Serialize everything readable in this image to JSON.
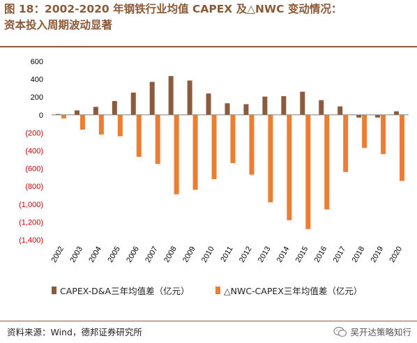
{
  "title": {
    "line1": "图 18：2002-2020 年钢铁行业均值 CAPEX 及△NWC 变动情况：",
    "line2": "资本投入周期波动显著"
  },
  "colors": {
    "title": "#8a5a38",
    "capex": "#8c5a3c",
    "nwc": "#ed7d31",
    "negative_tick": "#c00000",
    "axis": "#7f7f7f"
  },
  "chart_data": {
    "type": "bar",
    "categories": [
      "2002",
      "2003",
      "2004",
      "2005",
      "2006",
      "2007",
      "2008",
      "2009",
      "2010",
      "2011",
      "2012",
      "2013",
      "2014",
      "2015",
      "2016",
      "2017",
      "2018",
      "2019",
      "2020"
    ],
    "series": [
      {
        "name": "CAPEX-D&A三年均值差（亿元）",
        "values": [
          10,
          50,
          90,
          155,
          250,
          370,
          435,
          385,
          240,
          130,
          120,
          205,
          210,
          260,
          165,
          95,
          -30,
          -30,
          40
        ]
      },
      {
        "name": "△NWC-CAPEX三年均值差（亿元）",
        "values": [
          -40,
          -165,
          -220,
          -240,
          -470,
          -550,
          -890,
          -840,
          -720,
          -540,
          -670,
          -980,
          -1180,
          -1280,
          -1060,
          -640,
          -370,
          -440,
          -740
        ]
      }
    ],
    "ylim": [
      -1400,
      600
    ],
    "yticks": [
      "600",
      "400",
      "200",
      "0",
      "(200)",
      "(400)",
      "(600)",
      "(800)",
      "(1,000)",
      "(1,200)",
      "(1,400)"
    ],
    "ytick_values": [
      600,
      400,
      200,
      0,
      -200,
      -400,
      -600,
      -800,
      -1000,
      -1200,
      -1400
    ],
    "grid": false,
    "legend_position": "bottom"
  },
  "footer": {
    "source": "资料来源：Wind，德邦证券研究所",
    "watermark": "吴开达策略知行"
  }
}
